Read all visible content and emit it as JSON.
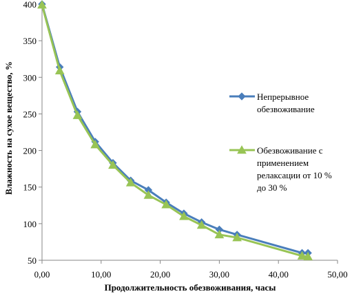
{
  "chart_data": {
    "type": "line",
    "xlabel": "Продолжительность обезвоживания, часы",
    "ylabel": "Влажность на сухое вещество, %",
    "xlim": [
      0,
      50
    ],
    "ylim": [
      50,
      400
    ],
    "xticks": [
      0,
      10,
      20,
      30,
      40,
      50
    ],
    "xtick_labels": [
      "0,00",
      "10,00",
      "20,00",
      "30,00",
      "40,00",
      "50,00"
    ],
    "yticks": [
      50,
      100,
      150,
      200,
      250,
      300,
      350,
      400
    ],
    "ytick_labels": [
      "50",
      "100",
      "150",
      "200",
      "250",
      "300",
      "350",
      "400"
    ],
    "grid": false,
    "legend_position": "right",
    "series": [
      {
        "name": "Непрерывное обезвоживание",
        "name_lines": [
          "Непрерывное",
          "обезвоживание"
        ],
        "color": "#4a7ebb",
        "marker": "diamond",
        "x": [
          0,
          3,
          6,
          9,
          12,
          15,
          18,
          21,
          24,
          27,
          30,
          33,
          44,
          45
        ],
        "y": [
          400,
          314,
          253,
          212,
          183,
          159,
          146,
          129,
          114,
          102,
          92,
          85,
          60,
          60
        ]
      },
      {
        "name": "Обезвоживание с применением релаксации от 10 % до 30 %",
        "name_lines": [
          "Обезвоживание с",
          "применением",
          "релаксации от 10 %",
          "до 30 %"
        ],
        "color": "#98c455",
        "marker": "triangle",
        "x": [
          0,
          3,
          6,
          9,
          12,
          15,
          18,
          21,
          24,
          27,
          30,
          33,
          44,
          45
        ],
        "y": [
          399,
          309,
          248,
          208,
          180,
          156,
          139,
          126,
          110,
          98,
          85,
          81,
          56,
          55
        ]
      }
    ]
  }
}
